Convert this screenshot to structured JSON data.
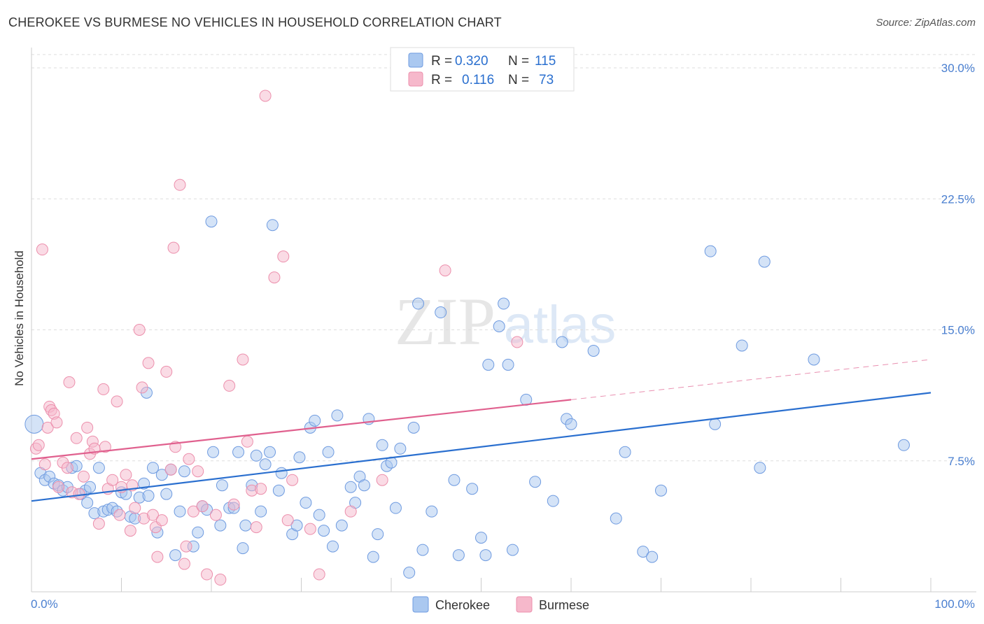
{
  "title": "CHEROKEE VS BURMESE NO VEHICLES IN HOUSEHOLD CORRELATION CHART",
  "source": "Source: ZipAtlas.com",
  "colors": {
    "cherokee_fill": "#aac8f0",
    "cherokee_stroke": "#6f9be0",
    "cherokee_line": "#2a6fcf",
    "burmese_fill": "#f6b8cb",
    "burmese_stroke": "#ec8fac",
    "burmese_line": "#e0608e",
    "tick_text": "#4a7fd0",
    "grid": "#dddddd"
  },
  "legend": {
    "rows": [
      {
        "r_label": "R =",
        "r_value": "0.320",
        "n_label": "N =",
        "n_value": "115"
      },
      {
        "r_label": "R =",
        "r_value": "0.116",
        "n_label": "N =",
        "n_value": "73"
      }
    ]
  },
  "chart_data": {
    "type": "scatter",
    "title": "CHEROKEE VS BURMESE NO VEHICLES IN HOUSEHOLD CORRELATION CHART",
    "xlabel": "",
    "ylabel": "No Vehicles in Household",
    "xlim": [
      0,
      100
    ],
    "ylim": [
      0,
      30
    ],
    "x_ticks": [
      "0.0%",
      "100.0%"
    ],
    "y_ticks": [
      "7.5%",
      "15.0%",
      "22.5%",
      "30.0%"
    ],
    "y_tick_values": [
      7.5,
      15.0,
      22.5,
      30.0
    ],
    "grid": true,
    "legend_position": "top-center",
    "series": [
      {
        "name": "Cherokee",
        "R": 0.32,
        "N": 115,
        "trend": {
          "x": [
            0,
            100
          ],
          "y": [
            5.2,
            11.4
          ]
        },
        "points": [
          [
            0.3,
            9.6
          ],
          [
            1,
            6.8
          ],
          [
            1.5,
            6.4
          ],
          [
            2,
            6.6
          ],
          [
            2.5,
            6.2
          ],
          [
            3,
            6.1
          ],
          [
            3.5,
            5.8
          ],
          [
            4,
            6.0
          ],
          [
            4.5,
            7.1
          ],
          [
            5,
            7.2
          ],
          [
            5.5,
            5.6
          ],
          [
            6,
            5.8
          ],
          [
            6.2,
            5.1
          ],
          [
            6.5,
            6.0
          ],
          [
            7,
            4.5
          ],
          [
            7.5,
            7.1
          ],
          [
            8,
            4.6
          ],
          [
            8.5,
            4.7
          ],
          [
            9,
            4.8
          ],
          [
            9.5,
            4.6
          ],
          [
            10,
            5.7
          ],
          [
            10.5,
            5.6
          ],
          [
            11,
            4.3
          ],
          [
            11.5,
            4.2
          ],
          [
            12,
            5.4
          ],
          [
            12.5,
            6.2
          ],
          [
            12.8,
            11.4
          ],
          [
            13,
            5.5
          ],
          [
            13.5,
            7.1
          ],
          [
            14,
            3.4
          ],
          [
            14.5,
            6.7
          ],
          [
            15,
            5.6
          ],
          [
            15.5,
            7.0
          ],
          [
            16,
            2.1
          ],
          [
            16.5,
            4.6
          ],
          [
            17,
            6.9
          ],
          [
            18,
            2.6
          ],
          [
            18.5,
            3.4
          ],
          [
            19,
            4.9
          ],
          [
            19.5,
            4.7
          ],
          [
            20,
            21.2
          ],
          [
            20.2,
            8.0
          ],
          [
            21,
            3.8
          ],
          [
            21.2,
            6.1
          ],
          [
            22,
            4.8
          ],
          [
            22.5,
            4.8
          ],
          [
            23,
            8.0
          ],
          [
            23.5,
            2.5
          ],
          [
            23.8,
            3.8
          ],
          [
            24.5,
            6.1
          ],
          [
            25,
            7.8
          ],
          [
            25.5,
            4.6
          ],
          [
            26,
            7.3
          ],
          [
            26.5,
            8.0
          ],
          [
            26.8,
            21.0
          ],
          [
            27.5,
            5.8
          ],
          [
            27.8,
            6.8
          ],
          [
            29,
            3.3
          ],
          [
            29.5,
            3.8
          ],
          [
            29.8,
            7.7
          ],
          [
            30.5,
            5.1
          ],
          [
            31,
            9.4
          ],
          [
            31.5,
            9.8
          ],
          [
            32,
            4.4
          ],
          [
            32.5,
            3.5
          ],
          [
            33,
            8.0
          ],
          [
            33.5,
            2.6
          ],
          [
            34,
            10.1
          ],
          [
            34.5,
            3.8
          ],
          [
            35.5,
            6.0
          ],
          [
            36,
            5.1
          ],
          [
            36.5,
            6.6
          ],
          [
            37,
            6.1
          ],
          [
            37.5,
            9.9
          ],
          [
            38,
            2.0
          ],
          [
            38.5,
            3.3
          ],
          [
            39,
            8.4
          ],
          [
            39.5,
            7.2
          ],
          [
            40,
            7.4
          ],
          [
            40.5,
            4.8
          ],
          [
            41,
            8.2
          ],
          [
            42,
            1.1
          ],
          [
            42.5,
            9.4
          ],
          [
            43,
            16.5
          ],
          [
            43.5,
            2.4
          ],
          [
            44.5,
            4.6
          ],
          [
            45.5,
            16.0
          ],
          [
            47,
            6.4
          ],
          [
            47.5,
            2.1
          ],
          [
            49,
            5.9
          ],
          [
            50,
            3.1
          ],
          [
            50.5,
            2.1
          ],
          [
            50.8,
            13.0
          ],
          [
            52,
            15.2
          ],
          [
            52.5,
            16.5
          ],
          [
            53,
            13.0
          ],
          [
            53.5,
            2.4
          ],
          [
            55,
            11.0
          ],
          [
            56,
            6.3
          ],
          [
            58,
            5.2
          ],
          [
            59,
            14.3
          ],
          [
            59.5,
            9.9
          ],
          [
            60,
            9.6
          ],
          [
            62.5,
            13.8
          ],
          [
            65,
            4.2
          ],
          [
            66,
            8.0
          ],
          [
            68,
            2.3
          ],
          [
            69,
            2.0
          ],
          [
            70,
            5.8
          ],
          [
            75.5,
            19.5
          ],
          [
            76,
            9.6
          ],
          [
            79,
            14.1
          ],
          [
            81,
            7.1
          ],
          [
            81.5,
            18.9
          ],
          [
            87,
            13.3
          ],
          [
            97,
            8.4
          ]
        ]
      },
      {
        "name": "Burmese",
        "R": 0.116,
        "N": 73,
        "trend": {
          "x": [
            0,
            60
          ],
          "y": [
            7.6,
            11.0
          ]
        },
        "trend_dashed": {
          "x": [
            60,
            100
          ],
          "y": [
            11.0,
            13.3
          ]
        },
        "points": [
          [
            0.5,
            8.2
          ],
          [
            0.8,
            8.4
          ],
          [
            1.2,
            19.6
          ],
          [
            1.5,
            7.3
          ],
          [
            1.8,
            9.4
          ],
          [
            2,
            10.6
          ],
          [
            2.2,
            10.4
          ],
          [
            2.5,
            10.2
          ],
          [
            2.8,
            9.7
          ],
          [
            3,
            6.0
          ],
          [
            3.5,
            7.4
          ],
          [
            4,
            7.1
          ],
          [
            4.2,
            12.0
          ],
          [
            4.5,
            5.7
          ],
          [
            5,
            8.8
          ],
          [
            5.3,
            5.6
          ],
          [
            5.8,
            6.6
          ],
          [
            6.2,
            9.4
          ],
          [
            6.5,
            7.9
          ],
          [
            6.8,
            8.6
          ],
          [
            7,
            8.2
          ],
          [
            7.5,
            3.9
          ],
          [
            8,
            11.6
          ],
          [
            8.2,
            8.3
          ],
          [
            8.5,
            5.9
          ],
          [
            9,
            6.4
          ],
          [
            9.5,
            10.9
          ],
          [
            9.8,
            4.4
          ],
          [
            10,
            6.0
          ],
          [
            10.5,
            6.7
          ],
          [
            11,
            3.5
          ],
          [
            11.2,
            6.1
          ],
          [
            11.5,
            4.8
          ],
          [
            12,
            15.0
          ],
          [
            12.3,
            11.7
          ],
          [
            12.5,
            4.2
          ],
          [
            13,
            13.1
          ],
          [
            13.5,
            4.4
          ],
          [
            13.8,
            3.7
          ],
          [
            14,
            2.0
          ],
          [
            14.5,
            4.1
          ],
          [
            15,
            12.6
          ],
          [
            15.5,
            7.0
          ],
          [
            15.8,
            19.7
          ],
          [
            16,
            8.3
          ],
          [
            16.5,
            23.3
          ],
          [
            17,
            1.6
          ],
          [
            17.2,
            2.6
          ],
          [
            17.5,
            7.6
          ],
          [
            18,
            4.6
          ],
          [
            18.5,
            6.9
          ],
          [
            19,
            4.9
          ],
          [
            19.5,
            1.0
          ],
          [
            20.5,
            4.4
          ],
          [
            21,
            0.7
          ],
          [
            22,
            11.8
          ],
          [
            22.5,
            5.0
          ],
          [
            23.5,
            13.3
          ],
          [
            24,
            8.6
          ],
          [
            24.5,
            5.8
          ],
          [
            25,
            3.7
          ],
          [
            25.5,
            5.9
          ],
          [
            26,
            28.4
          ],
          [
            27,
            18.0
          ],
          [
            28,
            19.2
          ],
          [
            28.5,
            4.1
          ],
          [
            29,
            6.4
          ],
          [
            31,
            3.6
          ],
          [
            32,
            1.0
          ],
          [
            35.5,
            4.6
          ],
          [
            39,
            6.4
          ],
          [
            46,
            18.4
          ],
          [
            54,
            14.3
          ]
        ]
      }
    ]
  },
  "bottom_legend": [
    "Cherokee",
    "Burmese"
  ],
  "watermark": "ZIPatlas"
}
